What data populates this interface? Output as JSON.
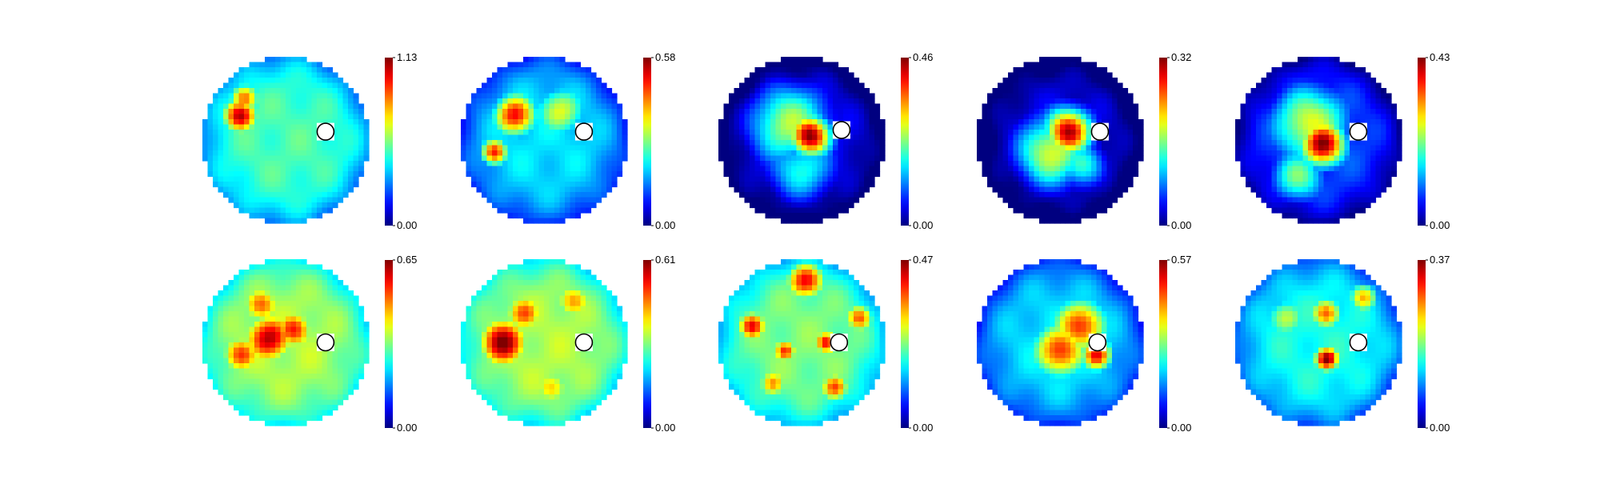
{
  "chart_data": [
    {
      "type": "heatmap",
      "colormap": "jet",
      "cbar_max_label": "1.13",
      "cbar_min_label": "0.00",
      "vmax": 1.13,
      "vmin": 0.0,
      "hotspots": [
        {
          "x": -0.55,
          "y": 0.3,
          "s": 0.17,
          "v": 1.0
        },
        {
          "x": -0.5,
          "y": 0.5,
          "s": 0.15,
          "v": 0.85
        }
      ],
      "background": 0.45,
      "marker": {
        "x": 0.48,
        "y": 0.1
      }
    },
    {
      "type": "heatmap",
      "colormap": "jet",
      "cbar_max_label": "0.58",
      "cbar_min_label": "0.00",
      "vmax": 0.58,
      "vmin": 0.0,
      "hotspots": [
        {
          "x": -0.35,
          "y": 0.3,
          "s": 0.2,
          "v": 0.9
        },
        {
          "x": -0.6,
          "y": -0.15,
          "s": 0.13,
          "v": 0.9
        },
        {
          "x": 0.2,
          "y": 0.35,
          "s": 0.25,
          "v": 0.6
        }
      ],
      "background": 0.35,
      "marker": {
        "x": 0.48,
        "y": 0.1
      }
    },
    {
      "type": "heatmap",
      "colormap": "jet",
      "cbar_max_label": "0.46",
      "cbar_min_label": "0.00",
      "vmax": 0.46,
      "vmin": 0.0,
      "hotspots": [
        {
          "x": 0.1,
          "y": 0.05,
          "s": 0.18,
          "v": 1.0
        },
        {
          "x": -0.15,
          "y": 0.2,
          "s": 0.35,
          "v": 0.55
        },
        {
          "x": 0.0,
          "y": -0.35,
          "s": 0.3,
          "v": 0.4
        }
      ],
      "background": 0.12,
      "marker": {
        "x": 0.48,
        "y": 0.12
      }
    },
    {
      "type": "heatmap",
      "colormap": "jet",
      "cbar_max_label": "0.32",
      "cbar_min_label": "0.00",
      "vmax": 0.32,
      "vmin": 0.0,
      "hotspots": [
        {
          "x": 0.1,
          "y": 0.1,
          "s": 0.2,
          "v": 0.95
        },
        {
          "x": -0.1,
          "y": -0.15,
          "s": 0.3,
          "v": 0.6
        },
        {
          "x": 0.25,
          "y": -0.3,
          "s": 0.2,
          "v": 0.45
        }
      ],
      "background": 0.1,
      "marker": {
        "x": 0.48,
        "y": 0.1
      }
    },
    {
      "type": "heatmap",
      "colormap": "jet",
      "cbar_max_label": "0.43",
      "cbar_min_label": "0.00",
      "vmax": 0.43,
      "vmin": 0.0,
      "hotspots": [
        {
          "x": 0.05,
          "y": -0.05,
          "s": 0.2,
          "v": 1.0
        },
        {
          "x": -0.1,
          "y": 0.2,
          "s": 0.35,
          "v": 0.6
        },
        {
          "x": -0.25,
          "y": -0.45,
          "s": 0.25,
          "v": 0.5
        }
      ],
      "background": 0.2,
      "marker": {
        "x": 0.48,
        "y": 0.1
      }
    },
    {
      "type": "heatmap",
      "colormap": "jet",
      "cbar_max_label": "0.65",
      "cbar_min_label": "0.00",
      "vmax": 0.65,
      "vmin": 0.0,
      "hotspots": [
        {
          "x": -0.2,
          "y": 0.05,
          "s": 0.25,
          "v": 0.95
        },
        {
          "x": -0.55,
          "y": -0.15,
          "s": 0.2,
          "v": 0.85
        },
        {
          "x": 0.1,
          "y": 0.15,
          "s": 0.2,
          "v": 0.85
        },
        {
          "x": -0.3,
          "y": 0.45,
          "s": 0.2,
          "v": 0.8
        }
      ],
      "background": 0.55,
      "marker": {
        "x": 0.48,
        "y": 0.0
      }
    },
    {
      "type": "heatmap",
      "colormap": "jet",
      "cbar_max_label": "0.61",
      "cbar_min_label": "0.00",
      "vmax": 0.61,
      "vmin": 0.0,
      "hotspots": [
        {
          "x": -0.5,
          "y": 0.0,
          "s": 0.25,
          "v": 1.0
        },
        {
          "x": -0.25,
          "y": 0.35,
          "s": 0.2,
          "v": 0.8
        },
        {
          "x": 0.35,
          "y": 0.5,
          "s": 0.2,
          "v": 0.75
        },
        {
          "x": 0.1,
          "y": -0.55,
          "s": 0.2,
          "v": 0.7
        }
      ],
      "background": 0.55,
      "marker": {
        "x": 0.48,
        "y": 0.0
      }
    },
    {
      "type": "heatmap",
      "colormap": "jet",
      "cbar_max_label": "0.47",
      "cbar_min_label": "0.00",
      "vmax": 0.47,
      "vmin": 0.0,
      "hotspots": [
        {
          "x": 0.05,
          "y": 0.75,
          "s": 0.2,
          "v": 0.95
        },
        {
          "x": -0.6,
          "y": 0.2,
          "s": 0.15,
          "v": 0.9
        },
        {
          "x": 0.3,
          "y": 0.0,
          "s": 0.12,
          "v": 0.9
        },
        {
          "x": -0.2,
          "y": -0.1,
          "s": 0.12,
          "v": 0.85
        },
        {
          "x": 0.4,
          "y": -0.55,
          "s": 0.15,
          "v": 0.85
        },
        {
          "x": -0.35,
          "y": -0.5,
          "s": 0.15,
          "v": 0.75
        },
        {
          "x": 0.7,
          "y": 0.3,
          "s": 0.15,
          "v": 0.85
        }
      ],
      "background": 0.5,
      "marker": {
        "x": 0.45,
        "y": 0.0
      }
    },
    {
      "type": "heatmap",
      "colormap": "jet",
      "cbar_max_label": "0.57",
      "cbar_min_label": "0.00",
      "vmax": 0.57,
      "vmin": 0.0,
      "hotspots": [
        {
          "x": 0.25,
          "y": 0.2,
          "s": 0.25,
          "v": 0.85
        },
        {
          "x": 0.0,
          "y": -0.1,
          "s": 0.25,
          "v": 0.85
        },
        {
          "x": 0.45,
          "y": -0.15,
          "s": 0.15,
          "v": 0.9
        }
      ],
      "background": 0.35,
      "marker": {
        "x": 0.45,
        "y": 0.0
      }
    },
    {
      "type": "heatmap",
      "colormap": "jet",
      "cbar_max_label": "0.37",
      "cbar_min_label": "0.00",
      "vmax": 0.37,
      "vmin": 0.0,
      "hotspots": [
        {
          "x": 0.1,
          "y": -0.2,
          "s": 0.12,
          "v": 1.0
        },
        {
          "x": 0.1,
          "y": 0.35,
          "s": 0.15,
          "v": 0.8
        },
        {
          "x": 0.55,
          "y": 0.55,
          "s": 0.15,
          "v": 0.75
        },
        {
          "x": -0.4,
          "y": 0.3,
          "s": 0.2,
          "v": 0.6
        }
      ],
      "background": 0.4,
      "marker": {
        "x": 0.48,
        "y": 0.0
      }
    }
  ]
}
